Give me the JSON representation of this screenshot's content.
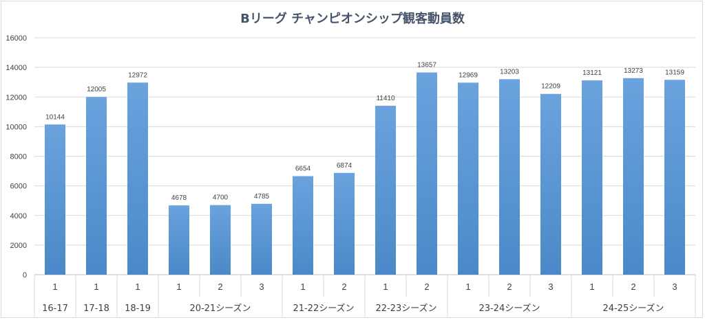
{
  "chart_data": {
    "type": "bar",
    "title": "Bリーグ チャンピオンシップ観客動員数",
    "ylim": [
      0,
      16000
    ],
    "yticks": [
      0,
      2000,
      4000,
      6000,
      8000,
      10000,
      12000,
      14000,
      16000
    ],
    "grid": true,
    "legend": "none",
    "groups": [
      {
        "label": "16-17",
        "games": [
          "1"
        ],
        "values": [
          10144
        ]
      },
      {
        "label": "17-18",
        "games": [
          "1"
        ],
        "values": [
          12005
        ]
      },
      {
        "label": "18-19",
        "games": [
          "1"
        ],
        "values": [
          12972
        ]
      },
      {
        "label": "20-21シーズン",
        "games": [
          "1",
          "2",
          "3"
        ],
        "values": [
          4678,
          4700,
          4785
        ]
      },
      {
        "label": "21-22シーズン",
        "games": [
          "1",
          "2"
        ],
        "values": [
          6654,
          6874
        ]
      },
      {
        "label": "22-23シーズン",
        "games": [
          "1",
          "2"
        ],
        "values": [
          11410,
          13657
        ]
      },
      {
        "label": "23-24シーズン",
        "games": [
          "1",
          "2",
          "3"
        ],
        "values": [
          12969,
          13203,
          12209
        ]
      },
      {
        "label": "24-25シーズン",
        "games": [
          "1",
          "2",
          "3"
        ],
        "values": [
          13121,
          13273,
          13159
        ]
      }
    ],
    "colors": {
      "bar_top": "#6aa3de",
      "bar_bottom": "#4a89c8",
      "grid": "#d9d9d9",
      "axis_text": "#404040",
      "title": "#44546a"
    }
  }
}
